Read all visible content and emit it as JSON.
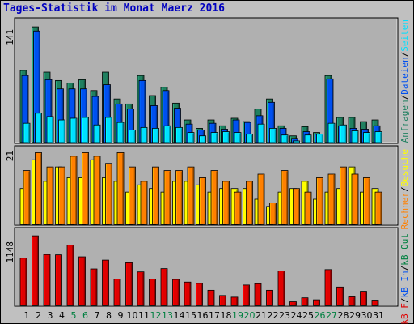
{
  "title": "Tages-Statistik im Monat Maerz 2016",
  "colors": {
    "title": "#0000c0",
    "weekend_day": "#008040",
    "weekday_day": "#000000",
    "anfragen": "#208060",
    "dateien": "#0050f0",
    "seiten": "#00e0ff",
    "rechner": "#ff8000",
    "besuche": "#ffff00",
    "kb": "#e00000"
  },
  "chart_data": [
    {
      "type": "bar",
      "panel": "top",
      "ytick_label": "141",
      "ylim": [
        0,
        141
      ],
      "categories": [
        "1",
        "2",
        "3",
        "4",
        "5",
        "6",
        "7",
        "8",
        "9",
        "10",
        "11",
        "12",
        "13",
        "14",
        "15",
        "16",
        "17",
        "18",
        "19",
        "20",
        "21",
        "22",
        "23",
        "24",
        "25",
        "26",
        "27",
        "28",
        "29",
        "30",
        "31"
      ],
      "weekend_days": [
        "5",
        "6",
        "12",
        "13",
        "19",
        "20",
        "26",
        "27"
      ],
      "right_labels": [
        {
          "text": "Anfragen",
          "color": "#208060"
        },
        {
          "text": "/",
          "color": "#000000"
        },
        {
          "text": "Dateien",
          "color": "#0050f0"
        },
        {
          "text": "/",
          "color": "#000000"
        },
        {
          "text": "Seiten",
          "color": "#00e0ff"
        }
      ],
      "series": [
        {
          "name": "Anfragen",
          "values": [
            86,
            138,
            84,
            74,
            71,
            75,
            62,
            84,
            52,
            46,
            80,
            56,
            66,
            47,
            27,
            17,
            27,
            20,
            29,
            25,
            40,
            52,
            20,
            8,
            19,
            12,
            80,
            30,
            30,
            25,
            27
          ]
        },
        {
          "name": "Dateien",
          "values": [
            80,
            133,
            75,
            64,
            64,
            64,
            55,
            69,
            46,
            40,
            74,
            44,
            62,
            41,
            22,
            15,
            23,
            16,
            27,
            24,
            32,
            48,
            17,
            5,
            13,
            10,
            76,
            20,
            17,
            16,
            20
          ]
        },
        {
          "name": "Seiten",
          "values": [
            23,
            35,
            31,
            27,
            29,
            30,
            21,
            30,
            24,
            15,
            18,
            17,
            20,
            18,
            12,
            8,
            12,
            13,
            12,
            10,
            22,
            17,
            9,
            2,
            9,
            10,
            23,
            21,
            14,
            12,
            13
          ]
        }
      ]
    },
    {
      "type": "bar",
      "panel": "middle",
      "ytick_label": "21",
      "ylim": [
        0,
        21
      ],
      "right_labels": [
        {
          "text": "Rechner",
          "color": "#ff8000"
        },
        {
          "text": "/",
          "color": "#000000"
        },
        {
          "text": "Besuche",
          "color": "#ffff00"
        }
      ],
      "series": [
        {
          "name": "Rechner",
          "values": [
            15,
            20,
            16,
            16,
            19,
            20,
            19,
            17,
            20,
            16,
            12,
            16,
            15,
            15,
            16,
            13,
            15,
            12,
            9,
            12,
            14,
            6,
            15,
            10,
            9,
            13,
            14,
            16,
            14,
            13,
            9
          ]
        },
        {
          "name": "Besuche",
          "values": [
            10,
            18,
            12,
            16,
            13,
            13,
            18,
            13,
            12,
            9,
            11,
            10,
            9,
            12,
            12,
            11,
            9,
            10,
            10,
            10,
            7,
            5,
            9,
            10,
            12,
            7,
            9,
            10,
            16,
            9,
            10
          ]
        }
      ]
    },
    {
      "type": "bar",
      "panel": "bottom",
      "ytick_label": "1148",
      "ylim": [
        0,
        1148
      ],
      "right_labels": [
        {
          "text": "kB F",
          "color": "#e00000"
        },
        {
          "text": "/",
          "color": "#000000"
        },
        {
          "text": "kB In",
          "color": "#0050f0"
        },
        {
          "text": "/",
          "color": "#000000"
        },
        {
          "text": "kB Out",
          "color": "#008040"
        }
      ],
      "series": [
        {
          "name": "kB F",
          "values": [
            720,
            1060,
            775,
            770,
            920,
            740,
            555,
            690,
            400,
            650,
            510,
            400,
            560,
            395,
            355,
            335,
            230,
            150,
            125,
            310,
            330,
            230,
            525,
            55,
            115,
            85,
            545,
            280,
            130,
            215,
            80
          ]
        }
      ]
    }
  ]
}
